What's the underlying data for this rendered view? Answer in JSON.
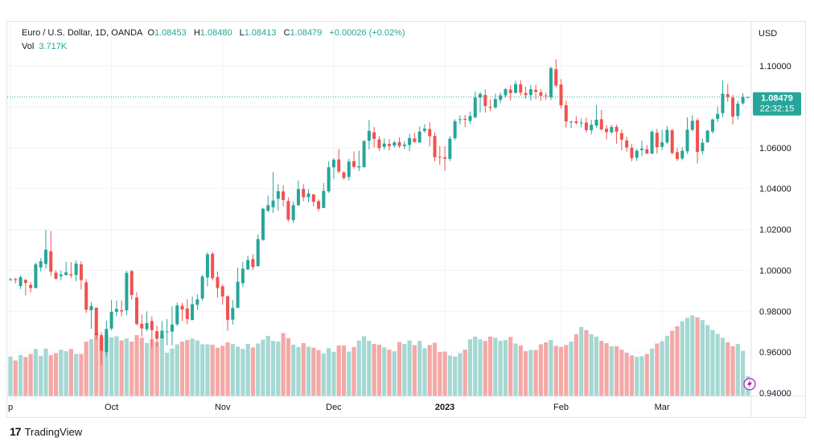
{
  "legend": {
    "symbol": "Euro / U.S. Dollar, 1D, OANDA",
    "open_label": "O",
    "open": "1.08453",
    "high_label": "H",
    "high": "1.08480",
    "low_label": "L",
    "low": "1.08413",
    "close_label": "C",
    "close": "1.08479",
    "change": "+0.00026 (+0.02%)",
    "vol_label": "Vol",
    "vol": "3.717K"
  },
  "price_axis": {
    "currency": "USD"
  },
  "last_price": {
    "price": 1.08479,
    "label": "1.08479",
    "countdown": "22:32:15"
  },
  "brand": {
    "name": "TradingView"
  },
  "colors": {
    "up": "#26a69a",
    "down": "#ef5350",
    "up_vol": "#a5d8d2",
    "down_vol": "#f4a9a7",
    "grid": "#f0f3fa",
    "axis_text": "#131722"
  },
  "chart_data": {
    "type": "candlestick",
    "ylim": [
      0.94,
      1.11
    ],
    "y_ticks": [
      0.94,
      0.96,
      0.98,
      1.0,
      1.02,
      1.04,
      1.06,
      1.08,
      1.1
    ],
    "y_tick_labels": [
      "0.94000",
      "0.96000",
      "0.98000",
      "1.00000",
      "1.02000",
      "1.04000",
      "1.06000",
      "1.08000",
      "1.10000"
    ],
    "x_labels": [
      {
        "bar": 0,
        "label": "p"
      },
      {
        "bar": 20,
        "label": "Oct"
      },
      {
        "bar": 42,
        "label": "Nov"
      },
      {
        "bar": 64,
        "label": "Dec"
      },
      {
        "bar": 86,
        "label": "2023",
        "bold": true
      },
      {
        "bar": 109,
        "label": "Feb"
      },
      {
        "bar": 129,
        "label": "Mar"
      }
    ],
    "volume_range": [
      0,
      2.3
    ],
    "candles": [
      [
        0.9956,
        0.9956,
        0.9963,
        0.9949
      ],
      [
        0.9957,
        0.9952,
        0.9964,
        0.9936
      ],
      [
        0.9923,
        0.9966,
        0.9975,
        0.9908
      ],
      [
        0.9953,
        0.9938,
        0.9957,
        0.9877
      ],
      [
        0.9929,
        0.9913,
        0.9942,
        0.9892
      ],
      [
        0.9913,
        1.0029,
        1.0038,
        0.9912
      ],
      [
        1.0014,
        1.0044,
        1.006,
        0.9995
      ],
      [
        1.0031,
        1.0101,
        1.0198,
        1.0008
      ],
      [
        1.0093,
        0.9994,
        1.0192,
        0.9973
      ],
      [
        0.9988,
        0.9959,
        1.0001,
        0.9955
      ],
      [
        0.9971,
        0.9979,
        0.9998,
        0.9951
      ],
      [
        0.9977,
        0.999,
        1.0042,
        0.9975
      ],
      [
        0.9981,
        0.9975,
        1.004,
        0.9962
      ],
      [
        0.9977,
        1.0033,
        1.0048,
        0.9947
      ],
      [
        1.0029,
        0.9952,
        1.0044,
        0.9906
      ],
      [
        0.9941,
        0.9807,
        0.9958,
        0.9791
      ],
      [
        0.9805,
        0.9825,
        0.9844,
        0.9714
      ],
      [
        0.9817,
        0.9681,
        0.9819,
        0.966
      ],
      [
        0.9683,
        0.9606,
        0.9698,
        0.9537
      ],
      [
        0.9601,
        0.9713,
        0.9754,
        0.9583
      ],
      [
        0.9715,
        0.9797,
        0.9854,
        0.9706
      ],
      [
        0.9797,
        0.9811,
        0.9852,
        0.9775
      ],
      [
        0.9805,
        0.9799,
        0.9853,
        0.9775
      ],
      [
        0.9804,
        0.9987,
        0.9998,
        0.9781
      ],
      [
        0.9996,
        0.9879,
        1.0003,
        0.9857
      ],
      [
        0.9867,
        0.9737,
        0.9893,
        0.9731
      ],
      [
        0.9738,
        0.9716,
        0.9784,
        0.9675
      ],
      [
        0.9712,
        0.9742,
        0.9799,
        0.9703
      ],
      [
        0.9752,
        0.9707,
        0.9774,
        0.9622
      ],
      [
        0.9702,
        0.9665,
        0.9729,
        0.9627
      ],
      [
        0.9667,
        0.9705,
        0.9752,
        0.9679
      ],
      [
        0.9701,
        0.9701,
        0.9762,
        0.9633
      ],
      [
        0.97,
        0.9735,
        0.9824,
        0.9633
      ],
      [
        0.9736,
        0.9828,
        0.9842,
        0.9728
      ],
      [
        0.9826,
        0.9808,
        0.9841,
        0.9751
      ],
      [
        0.9813,
        0.9762,
        0.9859,
        0.9736
      ],
      [
        0.9757,
        0.9834,
        0.9872,
        0.9756
      ],
      [
        0.9831,
        0.9858,
        0.9883,
        0.9806
      ],
      [
        0.9862,
        0.9969,
        0.9978,
        0.9851
      ],
      [
        0.9965,
        1.0078,
        1.0089,
        0.9921
      ],
      [
        1.0081,
        0.9961,
        1.009,
        0.995
      ],
      [
        0.9967,
        0.9913,
        0.9994,
        0.9866
      ],
      [
        0.9922,
        0.9872,
        0.9932,
        0.9832
      ],
      [
        0.9873,
        0.9757,
        0.9877,
        0.9704
      ],
      [
        0.9759,
        0.9816,
        0.9854,
        0.9734
      ],
      [
        0.9816,
        0.9944,
        1.0013,
        0.9816
      ],
      [
        0.9937,
        1.0008,
        1.0042,
        0.9918
      ],
      [
        1.0004,
        1.005,
        1.0072,
        1.0003
      ],
      [
        1.0055,
        1.0016,
        1.0078,
        1.0001
      ],
      [
        1.002,
        1.0153,
        1.0174,
        1.0019
      ],
      [
        1.0149,
        1.0301,
        1.0306,
        1.0144
      ],
      [
        1.0291,
        1.0319,
        1.0365,
        1.0285
      ],
      [
        1.0309,
        1.0341,
        1.0481,
        1.0281
      ],
      [
        1.035,
        1.0387,
        1.0421,
        1.0292
      ],
      [
        1.0386,
        1.0344,
        1.0416,
        1.0313
      ],
      [
        1.0339,
        1.0248,
        1.0358,
        1.0239
      ],
      [
        1.0246,
        1.0319,
        1.0338,
        1.0231
      ],
      [
        1.0319,
        1.0397,
        1.0439,
        1.0315
      ],
      [
        1.0398,
        1.0358,
        1.0421,
        1.0338
      ],
      [
        1.0358,
        1.0376,
        1.0397,
        1.0333
      ],
      [
        1.0371,
        1.0335,
        1.0374,
        1.0313
      ],
      [
        1.0338,
        1.0301,
        1.0347,
        1.0289
      ],
      [
        1.0305,
        1.0388,
        1.0427,
        1.0305
      ],
      [
        1.0386,
        1.0504,
        1.0534,
        1.0379
      ],
      [
        1.0504,
        1.0541,
        1.0549,
        1.0448
      ],
      [
        1.0542,
        1.0483,
        1.0594,
        1.0474
      ],
      [
        1.0479,
        1.0452,
        1.0484,
        1.0443
      ],
      [
        1.0457,
        1.0532,
        1.0546,
        1.044
      ],
      [
        1.0534,
        1.0506,
        1.0582,
        1.0497
      ],
      [
        1.0503,
        1.0509,
        1.0586,
        1.0485
      ],
      [
        1.0505,
        1.0632,
        1.0638,
        1.0502
      ],
      [
        1.0634,
        1.0682,
        1.0736,
        1.0592
      ],
      [
        1.0675,
        1.0643,
        1.0701,
        1.06
      ],
      [
        1.064,
        1.0598,
        1.0656,
        1.0585
      ],
      [
        1.0604,
        1.062,
        1.0645,
        1.059
      ],
      [
        1.0618,
        1.0608,
        1.0642,
        1.0587
      ],
      [
        1.061,
        1.0626,
        1.0634,
        1.06
      ],
      [
        1.0627,
        1.0608,
        1.0651,
        1.0598
      ],
      [
        1.0608,
        1.0615,
        1.0632,
        1.0593
      ],
      [
        1.0613,
        1.0647,
        1.0668,
        1.0583
      ],
      [
        1.0645,
        1.0628,
        1.0673,
        1.0625
      ],
      [
        1.0625,
        1.0679,
        1.0703,
        1.0624
      ],
      [
        1.0682,
        1.0693,
        1.0715,
        1.0672
      ],
      [
        1.0691,
        1.0656,
        1.0724,
        1.0607
      ],
      [
        1.0657,
        1.0553,
        1.0675,
        1.0533
      ],
      [
        1.0555,
        1.0551,
        1.0607,
        1.0516
      ],
      [
        1.0553,
        1.0546,
        1.0607,
        1.0486
      ],
      [
        1.0545,
        1.0644,
        1.0656,
        1.0535
      ],
      [
        1.0646,
        1.0729,
        1.0739,
        1.0636
      ],
      [
        1.0735,
        1.0739,
        1.0758,
        1.0715
      ],
      [
        1.0741,
        1.0736,
        1.076,
        1.07
      ],
      [
        1.0731,
        1.0755,
        1.0777,
        1.0717
      ],
      [
        1.0749,
        1.0845,
        1.0875,
        1.0743
      ],
      [
        1.0845,
        1.0863,
        1.0872,
        1.0773
      ],
      [
        1.0858,
        1.0804,
        1.0885,
        1.0772
      ],
      [
        1.0799,
        1.0798,
        1.0835,
        1.0778
      ],
      [
        1.0797,
        1.0838,
        1.0864,
        1.079
      ],
      [
        1.0834,
        1.0856,
        1.0869,
        1.0818
      ],
      [
        1.0856,
        1.0886,
        1.0892,
        1.0845
      ],
      [
        1.0884,
        1.0867,
        1.0904,
        1.0832
      ],
      [
        1.0868,
        1.0911,
        1.0928,
        1.0865
      ],
      [
        1.091,
        1.0869,
        1.0929,
        1.0855
      ],
      [
        1.0867,
        1.0857,
        1.0898,
        1.0839
      ],
      [
        1.0857,
        1.0886,
        1.0906,
        1.0831
      ],
      [
        1.0883,
        1.0873,
        1.0908,
        1.0836
      ],
      [
        1.0871,
        1.0853,
        1.0886,
        1.0829
      ],
      [
        1.0855,
        1.0851,
        1.0869,
        1.0834
      ],
      [
        1.0846,
        1.0989,
        1.0996,
        1.0833
      ],
      [
        1.0984,
        1.0904,
        1.1033,
        1.0895
      ],
      [
        1.0909,
        1.0807,
        1.0935,
        1.0791
      ],
      [
        1.0807,
        1.0728,
        1.083,
        1.0698
      ],
      [
        1.0726,
        1.0728,
        1.0731,
        1.0696
      ],
      [
        1.0728,
        1.0721,
        1.0754,
        1.0713
      ],
      [
        1.0723,
        1.0723,
        1.0742,
        1.0699
      ],
      [
        1.0723,
        1.0686,
        1.0747,
        1.0675
      ],
      [
        1.0685,
        1.0712,
        1.0736,
        1.0665
      ],
      [
        1.0708,
        1.0737,
        1.0808,
        1.0697
      ],
      [
        1.0739,
        1.0689,
        1.0785,
        1.0684
      ],
      [
        1.0693,
        1.0676,
        1.0709,
        1.064
      ],
      [
        1.0675,
        1.0701,
        1.0712,
        1.0669
      ],
      [
        1.0702,
        1.0678,
        1.0712,
        1.0619
      ],
      [
        1.0671,
        1.0639,
        1.069,
        1.0587
      ],
      [
        1.0635,
        1.0601,
        1.0653,
        1.058
      ],
      [
        1.0599,
        1.0549,
        1.0618,
        1.0534
      ],
      [
        1.0551,
        1.0585,
        1.0595,
        1.0535
      ],
      [
        1.0588,
        1.0596,
        1.0634,
        1.0558
      ],
      [
        1.0592,
        1.0571,
        1.0613,
        1.0569
      ],
      [
        1.0571,
        1.0678,
        1.0686,
        1.0569
      ],
      [
        1.0673,
        1.0602,
        1.0692,
        1.0571
      ],
      [
        1.0604,
        1.0626,
        1.0688,
        1.0588
      ],
      [
        1.0625,
        1.0687,
        1.0705,
        1.0616
      ],
      [
        1.0685,
        1.0574,
        1.0692,
        1.0566
      ],
      [
        1.0578,
        1.0545,
        1.06,
        1.0535
      ],
      [
        1.0547,
        1.0585,
        1.0602,
        1.0538
      ],
      [
        1.0582,
        1.0688,
        1.0748,
        1.0569
      ],
      [
        1.0687,
        1.0731,
        1.0759,
        1.068
      ],
      [
        1.0734,
        1.0579,
        1.0744,
        1.0522
      ],
      [
        1.0583,
        1.0624,
        1.0644,
        1.0567
      ],
      [
        1.0627,
        1.0683,
        1.0688,
        1.0624
      ],
      [
        1.0679,
        1.0738,
        1.0743,
        1.0668
      ],
      [
        1.0741,
        1.0765,
        1.08,
        1.0724
      ],
      [
        1.0769,
        1.0864,
        1.093,
        1.0752
      ],
      [
        1.0862,
        1.0847,
        1.0912,
        1.0824
      ],
      [
        1.0844,
        1.0752,
        1.0859,
        1.0713
      ],
      [
        1.0755,
        1.0815,
        1.0829,
        1.0738
      ],
      [
        1.0817,
        1.0847,
        1.0866,
        1.081
      ],
      [
        1.0845,
        1.0848,
        1.0848,
        1.0841
      ]
    ],
    "volumes": [
      1.03,
      0.93,
      1.07,
      1.02,
      1.1,
      1.23,
      1.05,
      1.24,
      1.07,
      1.12,
      1.21,
      1.17,
      1.23,
      1.1,
      1.1,
      1.42,
      1.48,
      1.65,
      1.51,
      1.58,
      1.53,
      1.56,
      1.45,
      1.5,
      1.42,
      1.59,
      1.52,
      1.38,
      1.48,
      1.41,
      1.58,
      1.13,
      1.24,
      1.35,
      1.42,
      1.46,
      1.5,
      1.45,
      1.35,
      1.35,
      1.34,
      1.26,
      1.31,
      1.4,
      1.36,
      1.29,
      1.23,
      1.36,
      1.27,
      1.37,
      1.47,
      1.57,
      1.44,
      1.42,
      1.64,
      1.51,
      1.34,
      1.28,
      1.38,
      1.29,
      1.26,
      1.2,
      1.11,
      1.25,
      1.15,
      1.32,
      1.32,
      1.16,
      1.28,
      1.45,
      1.56,
      1.44,
      1.36,
      1.34,
      1.27,
      1.21,
      1.17,
      1.41,
      1.36,
      1.45,
      1.33,
      1.44,
      1.25,
      1.33,
      1.39,
      1.15,
      1.16,
      1.06,
      1.03,
      1.12,
      1.21,
      1.48,
      1.55,
      1.48,
      1.44,
      1.55,
      1.52,
      1.44,
      1.46,
      1.54,
      1.37,
      1.32,
      1.17,
      1.2,
      1.2,
      1.35,
      1.4,
      1.46,
      1.31,
      1.28,
      1.33,
      1.42,
      1.61,
      1.8,
      1.72,
      1.61,
      1.55,
      1.44,
      1.38,
      1.3,
      1.3,
      1.21,
      1.13,
      1.06,
      1.02,
      1.04,
      1.1,
      1.24,
      1.37,
      1.43,
      1.57,
      1.7,
      1.82,
      1.95,
      2.04,
      2.1,
      2.05,
      1.98,
      1.85,
      1.72,
      1.62,
      1.52,
      1.4,
      1.3,
      1.36,
      1.18,
      0.52
    ],
    "volume_colors_from_candles": true
  }
}
